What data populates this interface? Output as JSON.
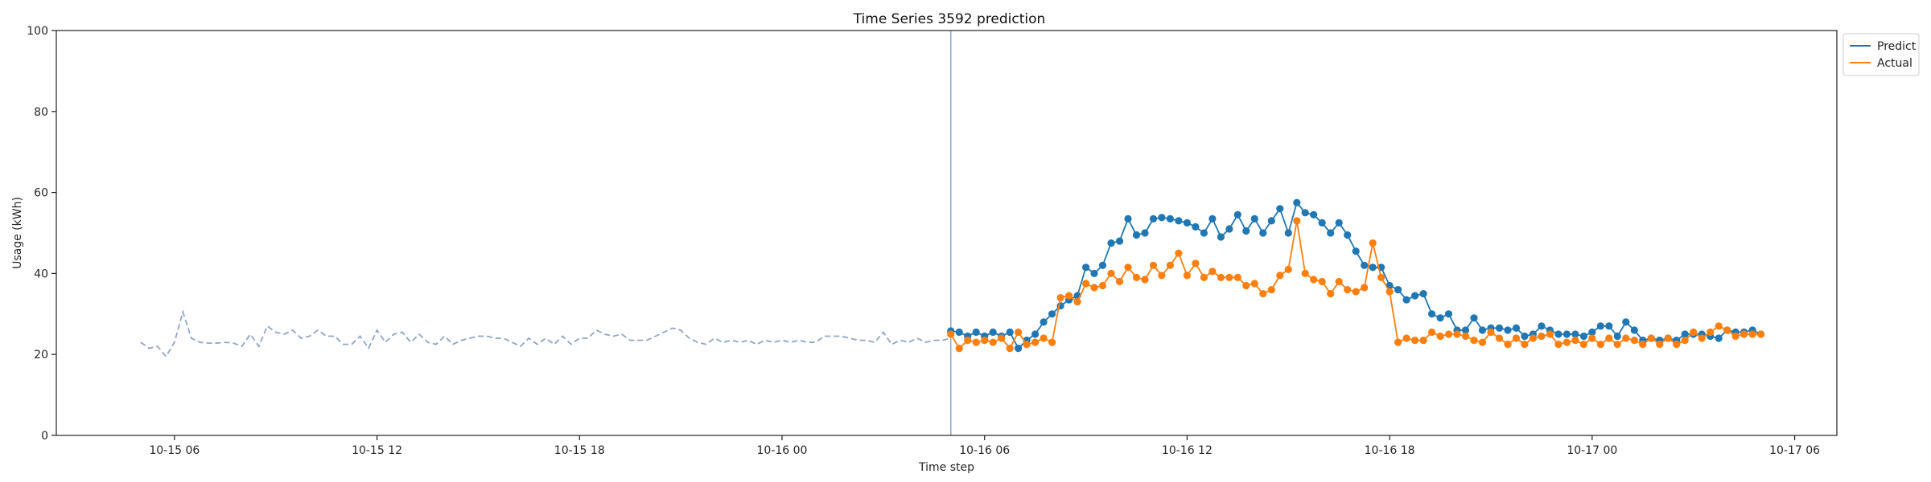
{
  "chart_data": {
    "type": "line",
    "title": "Time Series 3592 prediction",
    "xlabel": "Time step",
    "ylabel": "Usage (kWh)",
    "ylim": [
      0,
      100
    ],
    "yticks": [
      0,
      20,
      40,
      60,
      80,
      100
    ],
    "xlim": [
      "2024-10-15 02:30",
      "2024-10-17 07:15"
    ],
    "xticks": [
      {
        "t": "2024-10-15 06:00",
        "label": "10-15 06"
      },
      {
        "t": "2024-10-15 12:00",
        "label": "10-15 12"
      },
      {
        "t": "2024-10-15 18:00",
        "label": "10-15 18"
      },
      {
        "t": "2024-10-16 00:00",
        "label": "10-16 00"
      },
      {
        "t": "2024-10-16 06:00",
        "label": "10-16 06"
      },
      {
        "t": "2024-10-16 12:00",
        "label": "10-16 12"
      },
      {
        "t": "2024-10-16 18:00",
        "label": "10-16 18"
      },
      {
        "t": "2024-10-17 00:00",
        "label": "10-17 00"
      },
      {
        "t": "2024-10-17 06:00",
        "label": "10-17 06"
      }
    ],
    "forecast_start": "2024-10-16 05:00",
    "legend_position": "top-right, outside plot",
    "grid": false,
    "history": {
      "start": "2024-10-15 05:00",
      "step_minutes": 15,
      "color": "#8fa5c6",
      "style": "dashed",
      "values": [
        23.0,
        21.5,
        22.0,
        19.5,
        23.0,
        30.5,
        24.0,
        23.0,
        22.8,
        22.8,
        23.0,
        22.8,
        22.0,
        25.0,
        22.0,
        27.0,
        25.5,
        25.0,
        26.0,
        24.0,
        24.5,
        26.0,
        24.5,
        24.5,
        22.5,
        22.5,
        24.5,
        21.5,
        26.0,
        23.0,
        25.0,
        25.5,
        23.0,
        25.0,
        23.0,
        22.5,
        24.5,
        22.5,
        23.5,
        24.0,
        24.5,
        24.5,
        24.0,
        24.0,
        23.0,
        22.0,
        24.0,
        22.5,
        24.0,
        22.5,
        24.5,
        22.5,
        24.0,
        24.0,
        26.0,
        25.0,
        24.5,
        25.0,
        23.5,
        23.5,
        23.5,
        24.5,
        25.5,
        26.5,
        26.0,
        24.0,
        23.0,
        22.5,
        24.0,
        23.0,
        23.5,
        23.0,
        23.5,
        22.5,
        23.5,
        23.0,
        23.5,
        23.0,
        23.5,
        23.0,
        23.0,
        24.5,
        24.5,
        24.5,
        24.0,
        23.5,
        23.5,
        23.0,
        25.5,
        22.5,
        23.5,
        23.0,
        24.0,
        23.0,
        23.5,
        23.5,
        24.0
      ]
    },
    "forecast": {
      "start": "2024-10-16 05:00",
      "step_minutes": 15,
      "series": [
        {
          "name": "Predict",
          "color": "#1f77b4",
          "marker": "circle",
          "values": [
            25.8,
            25.5,
            24.5,
            25.5,
            24.5,
            25.5,
            24.5,
            25.5,
            21.5,
            23.5,
            25.0,
            28.0,
            30.0,
            32.0,
            33.5,
            34.5,
            41.5,
            40.0,
            42.0,
            47.5,
            48.0,
            53.5,
            49.5,
            50.0,
            53.5,
            53.8,
            53.5,
            53.0,
            52.5,
            51.5,
            50.0,
            53.5,
            49.0,
            51.0,
            54.5,
            50.5,
            53.5,
            50.0,
            53.0,
            56.0,
            50.0,
            57.5,
            55.0,
            54.5,
            52.5,
            50.0,
            52.5,
            49.5,
            45.5,
            42.0,
            41.5,
            41.5,
            37.0,
            36.0,
            33.5,
            34.5,
            35.0,
            30.0,
            29.0,
            30.0,
            26.0,
            26.0,
            29.0,
            26.0,
            26.5,
            26.5,
            26.0,
            26.5,
            24.5,
            25.0,
            27.0,
            26.0,
            25.0,
            25.0,
            25.0,
            24.5,
            25.5,
            27.0,
            27.0,
            24.5,
            28.0,
            26.0,
            23.5,
            24.0,
            23.5,
            24.0,
            23.5,
            25.0,
            25.0,
            25.0,
            24.5,
            24.0,
            26.0,
            25.5,
            25.5,
            26.0,
            25.0
          ]
        },
        {
          "name": "Actual",
          "color": "#ff7f0e",
          "marker": "circle",
          "values": [
            25.0,
            21.5,
            23.5,
            23.0,
            23.5,
            23.0,
            24.0,
            21.5,
            25.5,
            22.5,
            23.0,
            24.0,
            23.0,
            34.0,
            34.5,
            33.0,
            37.5,
            36.5,
            37.0,
            40.0,
            38.0,
            41.5,
            39.0,
            38.5,
            42.0,
            39.5,
            42.0,
            45.0,
            39.5,
            42.5,
            39.0,
            40.5,
            39.0,
            39.0,
            39.0,
            37.0,
            37.5,
            35.0,
            36.0,
            39.5,
            41.0,
            53.0,
            40.0,
            38.5,
            38.0,
            35.0,
            38.0,
            36.0,
            35.5,
            36.5,
            47.5,
            39.0,
            35.5,
            23.0,
            24.0,
            23.5,
            23.5,
            25.5,
            24.5,
            25.0,
            25.0,
            24.5,
            23.5,
            23.0,
            25.5,
            24.0,
            22.5,
            24.0,
            22.5,
            24.0,
            24.5,
            25.0,
            22.5,
            23.0,
            23.5,
            22.5,
            24.0,
            22.5,
            24.0,
            22.5,
            24.0,
            23.5,
            22.5,
            24.0,
            22.5,
            24.0,
            22.5,
            23.5,
            25.5,
            24.0,
            25.5,
            27.0,
            26.0,
            24.5,
            25.0,
            25.0,
            25.0
          ]
        }
      ]
    }
  }
}
